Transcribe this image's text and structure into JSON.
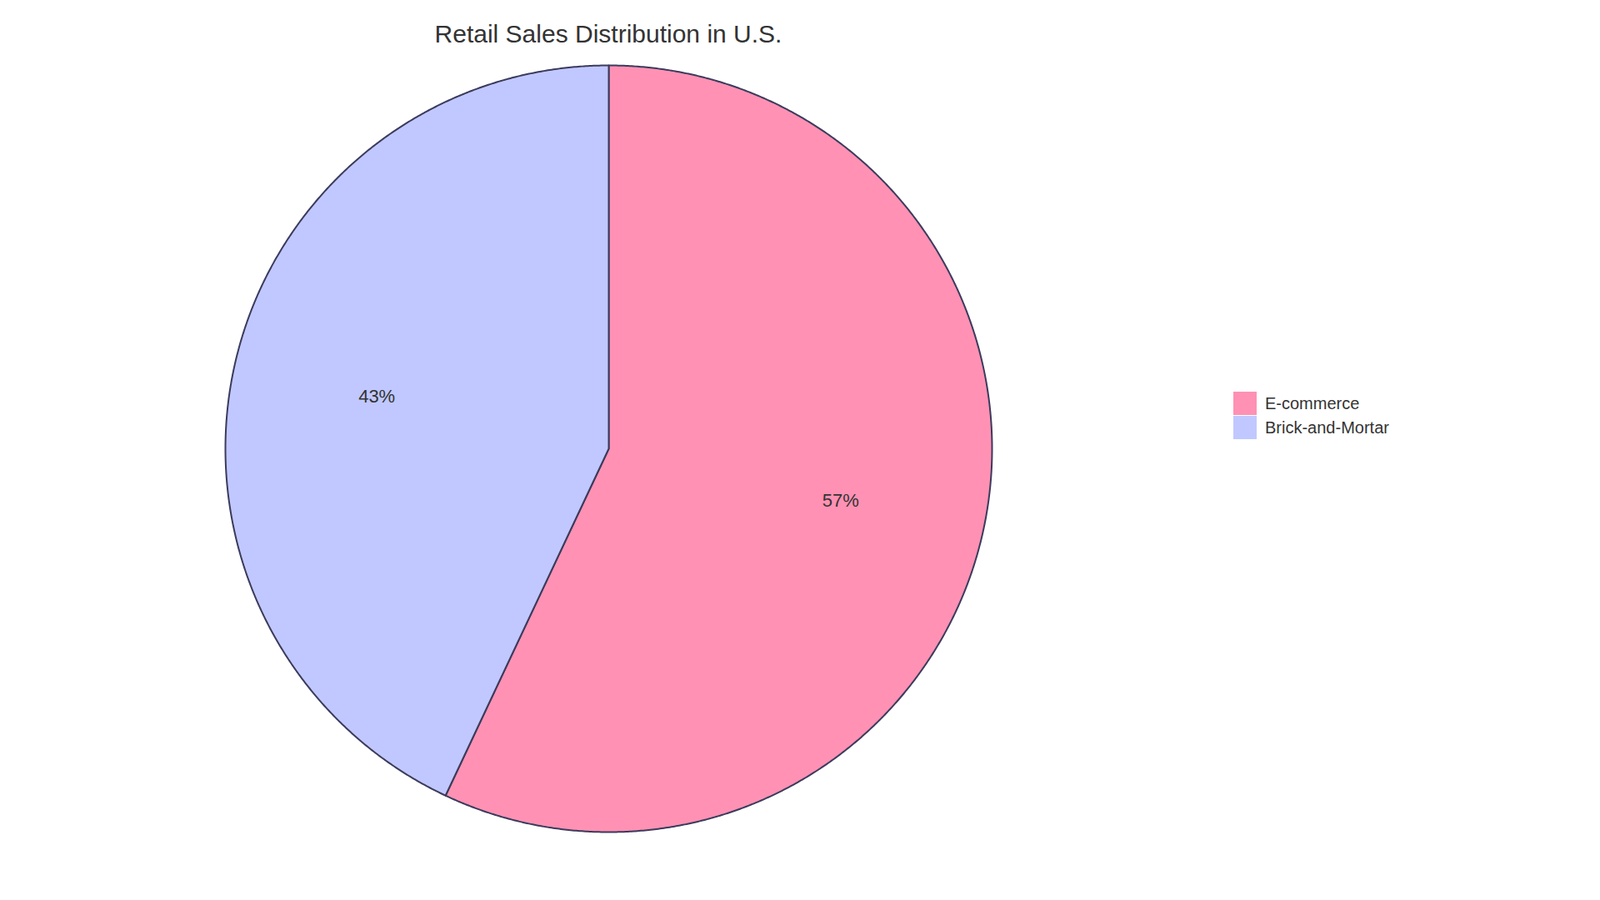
{
  "chart_data": {
    "type": "pie",
    "title": "Retail Sales Distribution in U.S.",
    "categories": [
      "E-commerce",
      "Brick-and-Mortar"
    ],
    "values": [
      57,
      43
    ],
    "value_labels": [
      "57%",
      "43%"
    ],
    "colors": [
      "#FF91B4",
      "#C0C8FF"
    ],
    "data_labels": true,
    "legend": "right"
  }
}
